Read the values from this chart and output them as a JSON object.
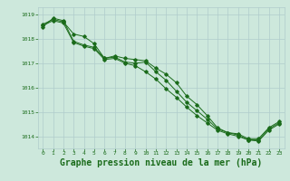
{
  "x": [
    0,
    1,
    2,
    3,
    4,
    5,
    6,
    7,
    8,
    9,
    10,
    11,
    12,
    13,
    14,
    15,
    16,
    17,
    18,
    19,
    20,
    21,
    22,
    23
  ],
  "series1": [
    1018.6,
    1018.8,
    1018.7,
    1018.2,
    1018.1,
    1017.8,
    1017.2,
    1017.3,
    1017.2,
    1017.15,
    1017.1,
    1016.8,
    1016.55,
    1016.2,
    1015.65,
    1015.3,
    1014.85,
    1014.35,
    1014.15,
    1014.1,
    1013.9,
    1013.9,
    1014.35,
    1014.6
  ],
  "series2": [
    1018.5,
    1018.85,
    1018.75,
    1017.9,
    1017.75,
    1017.65,
    1017.2,
    1017.25,
    1017.05,
    1017.0,
    1017.05,
    1016.65,
    1016.3,
    1015.85,
    1015.4,
    1015.05,
    1014.7,
    1014.3,
    1014.15,
    1014.05,
    1013.85,
    1013.85,
    1014.3,
    1014.55
  ],
  "series3": [
    1018.55,
    1018.75,
    1018.65,
    1017.85,
    1017.7,
    1017.6,
    1017.15,
    1017.2,
    1017.0,
    1016.9,
    1016.65,
    1016.35,
    1015.95,
    1015.6,
    1015.2,
    1014.85,
    1014.55,
    1014.25,
    1014.1,
    1014.0,
    1013.85,
    1013.8,
    1014.25,
    1014.5
  ],
  "bg_color": "#cde8dc",
  "grid_color": "#b0cccc",
  "line_color": "#1a6b1a",
  "marker_color": "#1a6b1a",
  "xlabel": "Graphe pression niveau de la mer (hPa)",
  "xlabel_fontsize": 7,
  "tick_color": "#1a6b1a",
  "ylim": [
    1013.5,
    1019.3
  ],
  "yticks": [
    1014,
    1015,
    1016,
    1017,
    1018,
    1019
  ],
  "xticks": [
    0,
    1,
    2,
    3,
    4,
    5,
    6,
    7,
    8,
    9,
    10,
    11,
    12,
    13,
    14,
    15,
    16,
    17,
    18,
    19,
    20,
    21,
    22,
    23
  ]
}
